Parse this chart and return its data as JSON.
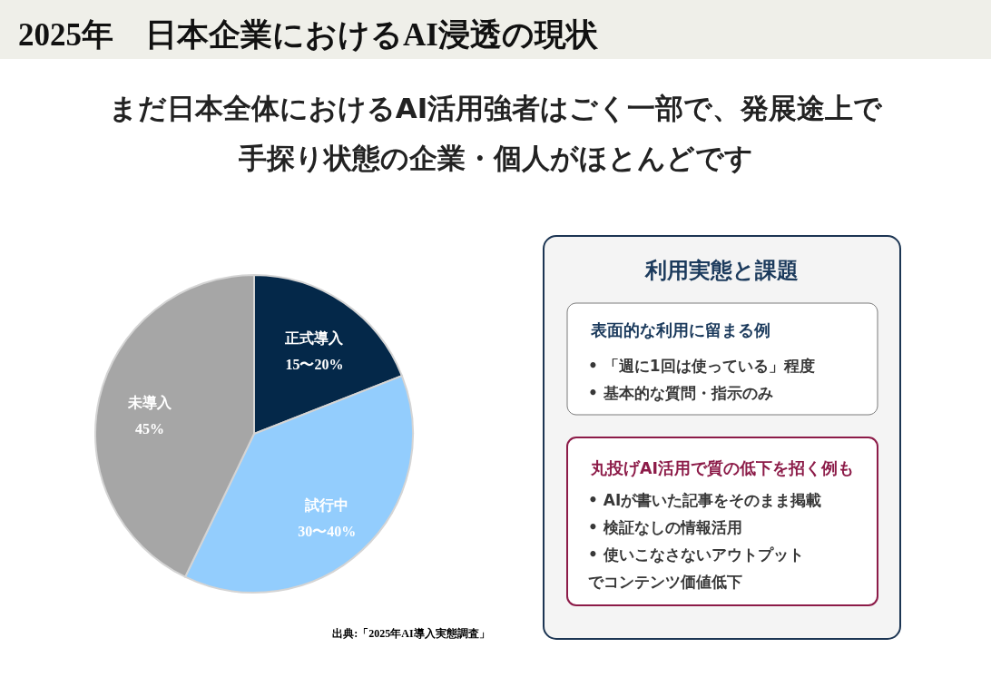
{
  "chart_data": [
    {
      "type": "pie",
      "title": "2025年　日本企業におけるAI浸透の現状",
      "subtitle": "まだ日本全体におけるAI活用強者はごく一部で、発展途上で手探り状態の企業・個人がほとんどです",
      "categories": [
        "正式導入",
        "試行中",
        "未導入"
      ],
      "values": [
        20,
        40,
        45
      ],
      "colors": [
        "#042849",
        "#93cdfd",
        "#a6a6a6"
      ],
      "value_labels": [
        "15〜20%",
        "30〜40%",
        "45%"
      ],
      "annotations": [
        "出典:「2025年AI導入実態調査」"
      ]
    },
    {
      "type": "other",
      "title": "利用実態と課題"
    },
    {
      "type": "other",
      "title": "表面的な利用に留まる例",
      "annotations": [
        "• 「週に1回は使っている」程度",
        "• 基本的な質問・指示のみ"
      ]
    },
    {
      "type": "other",
      "title": "丸投げAI活用で質の低下を招く例も",
      "annotations": [
        "• AIが書いた記事をそのまま掲載",
        "• 検証なしの情報活用",
        "• 使いこなさないアウトプット",
        "でコンテンツ価値低下"
      ]
    }
  ]
}
